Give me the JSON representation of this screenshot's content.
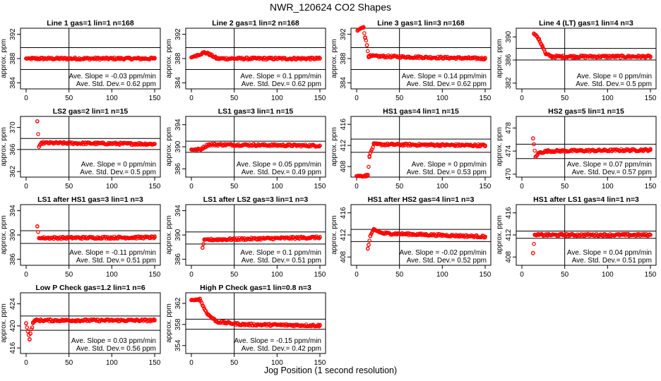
{
  "figure": {
    "title": "NWR_120624   CO2 Shapes",
    "xlabel": "Jog Position (1 second resolution)"
  },
  "colors": {
    "points": "#ff0000",
    "axes": "#000000"
  },
  "chart_data": [
    {
      "type": "scatter",
      "title": "Line 1 gas=1 lin=1 n=168",
      "ylabel": "approx. ppm",
      "xlim": [
        0,
        150
      ],
      "ylim": [
        383,
        393
      ],
      "yticks": [
        384,
        388,
        392
      ],
      "xticks": [
        0,
        50,
        100,
        150
      ],
      "hlines": [
        389.8,
        386.2
      ],
      "vline": 50,
      "slope": "Ave. Slope = -0.03  ppm/min",
      "stddev": "Ave. Std. Dev.= 0.62  ppm",
      "series": [
        {
          "x": [
            0,
            150
          ],
          "y": [
            388,
            388
          ]
        }
      ]
    },
    {
      "type": "scatter",
      "title": "Line 2 gas=1 lin=2 n=168",
      "ylabel": "approx. ppm",
      "xlim": [
        0,
        150
      ],
      "ylim": [
        383,
        393
      ],
      "yticks": [
        384,
        388,
        392
      ],
      "xticks": [
        0,
        50,
        100,
        150
      ],
      "hlines": [
        389.8,
        386.2
      ],
      "vline": 50,
      "slope": "Ave. Slope = 0.1  ppm/min",
      "stddev": "Ave. Std. Dev.= 0.62  ppm",
      "series": [
        {
          "x": [
            0,
            15,
            20,
            30,
            150
          ],
          "y": [
            388.2,
            389,
            388.8,
            388,
            388
          ]
        }
      ]
    },
    {
      "type": "scatter",
      "title": "Line 3 gas=1 lin=3 n=168",
      "ylabel": "approx. ppm",
      "xlim": [
        0,
        150
      ],
      "ylim": [
        383,
        393
      ],
      "yticks": [
        384,
        388,
        392
      ],
      "xticks": [
        0,
        50,
        100,
        150
      ],
      "hlines": [
        389.8,
        386.2
      ],
      "vline": 50,
      "slope": "Ave. Slope = 0.14  ppm/min",
      "stddev": "Ave. Std. Dev.= 0.62  ppm",
      "series": [
        {
          "x": [
            1,
            4,
            8,
            10,
            12,
            14,
            150
          ],
          "y": [
            392.6,
            392.9,
            393.2,
            391.5,
            390.2,
            388.4,
            388
          ]
        }
      ]
    },
    {
      "type": "scatter",
      "title": "Line 4 (LT) gas=1 lin=4 n=3",
      "ylabel": "approx. ppm",
      "xlim": [
        0,
        150
      ],
      "ylim": [
        381,
        391.5
      ],
      "yticks": [
        382,
        386,
        390
      ],
      "xticks": [
        0,
        50,
        100,
        150
      ],
      "hlines": [
        388,
        386
      ],
      "vline": 50,
      "slope": "Ave. Slope = 0  ppm/min",
      "stddev": "Ave. Std. Dev.= 0.5  ppm",
      "series": [
        {
          "x": [
            14,
            17,
            20,
            24,
            28,
            35,
            150
          ],
          "y": [
            390.6,
            390.2,
            389.5,
            388.4,
            387,
            386.6,
            386.6
          ]
        }
      ]
    },
    {
      "type": "scatter",
      "title": "LS2 gas=2 lin=1 n=15",
      "ylabel": "approx. ppm",
      "xlim": [
        0,
        150
      ],
      "ylim": [
        361,
        372
      ],
      "yticks": [
        362,
        366,
        370
      ],
      "xticks": [
        0,
        50,
        100,
        150
      ],
      "hlines": [
        368,
        366
      ],
      "vline": 50,
      "slope": "Ave. Slope = 0  ppm/min",
      "stddev": "Ave. Std. Dev.= 0.5  ppm",
      "series": [
        {
          "x": [
            13,
            15,
            18,
            150
          ],
          "y": [
            371.1,
            366.5,
            367.2,
            367
          ]
        }
      ]
    },
    {
      "type": "scatter",
      "title": "LS1 gas=3 lin=1 n=15",
      "ylabel": "approx. ppm",
      "xlim": [
        0,
        150
      ],
      "ylim": [
        384.5,
        395.5
      ],
      "yticks": [
        386,
        390,
        394
      ],
      "xticks": [
        0,
        50,
        100,
        150
      ],
      "hlines": [
        391,
        389
      ],
      "vline": 50,
      "slope": "Ave. Slope = 0.05  ppm/min",
      "stddev": "Ave. Std. Dev.= 0.49  ppm",
      "series": [
        {
          "x": [
            0,
            10,
            20,
            150
          ],
          "y": [
            389.5,
            389.5,
            390.4,
            390.2
          ]
        }
      ]
    },
    {
      "type": "scatter",
      "title": "HS1 gas=4 lin=1 n=15",
      "ylabel": "approx. ppm",
      "xlim": [
        0,
        150
      ],
      "ylim": [
        406,
        417.5
      ],
      "yticks": [
        408,
        412,
        416
      ],
      "xticks": [
        0,
        50,
        100,
        150
      ],
      "hlines": [
        413.2,
        410.7
      ],
      "vline": 50,
      "slope": "Ave. Slope = 0  ppm/min",
      "stddev": "Ave. Std. Dev.= 0.53  ppm",
      "series": [
        {
          "x": [
            0,
            13,
            15,
            20,
            150
          ],
          "y": [
            406.2,
            406.3,
            410,
            412.2,
            412
          ]
        }
      ]
    },
    {
      "type": "scatter",
      "title": "HS2 gas=5 lin=1 n=15",
      "ylabel": "approx. ppm",
      "xlim": [
        0,
        150
      ],
      "ylim": [
        469.5,
        480
      ],
      "yticks": [
        470,
        474,
        478
      ],
      "xticks": [
        0,
        50,
        100,
        150
      ],
      "hlines": [
        475.2,
        472.7
      ],
      "vline": 50,
      "slope": "Ave. Slope = 0.07  ppm/min",
      "stddev": "Ave. Std. Dev.= 0.57  ppm",
      "series": [
        {
          "x": [
            13,
            16,
            20,
            30,
            150
          ],
          "y": [
            476.2,
            473,
            473.7,
            474,
            474.2
          ]
        }
      ]
    },
    {
      "type": "scatter",
      "title": "LS1 after HS1 gas=3 lin=1 n=3",
      "ylabel": "approx. ppm",
      "xlim": [
        0,
        150
      ],
      "ylim": [
        385,
        395
      ],
      "yticks": [
        386,
        390,
        394
      ],
      "xticks": [
        0,
        50,
        100,
        150
      ],
      "hlines": [
        390.7,
        388.6
      ],
      "vline": 50,
      "slope": "Ave. Slope = -0.11  ppm/min",
      "stddev": "Ave. Std. Dev.= 0.51  ppm",
      "series": [
        {
          "x": [
            13,
            15,
            150
          ],
          "y": [
            391.4,
            389.5,
            389.6
          ]
        }
      ]
    },
    {
      "type": "scatter",
      "title": "LS1 after LS2 gas=3 lin=1 n=3",
      "ylabel": "approx. ppm",
      "xlim": [
        0,
        150
      ],
      "ylim": [
        385,
        395
      ],
      "yticks": [
        386,
        390,
        394
      ],
      "xticks": [
        0,
        50,
        100,
        150
      ],
      "hlines": [
        390.5,
        388.5
      ],
      "vline": 50,
      "slope": "Ave. Slope = 0.1  ppm/min",
      "stddev": "Ave. Std. Dev.= 0.51  ppm",
      "series": [
        {
          "x": [
            13,
            15,
            150
          ],
          "y": [
            387.9,
            389.2,
            389.6
          ]
        }
      ]
    },
    {
      "type": "scatter",
      "title": "HS1 after HS2 gas=4 lin=1 n=3",
      "ylabel": "approx. ppm",
      "xlim": [
        0,
        150
      ],
      "ylim": [
        406.5,
        417.5
      ],
      "yticks": [
        408,
        412,
        416
      ],
      "xticks": [
        0,
        50,
        100,
        150
      ],
      "hlines": [
        413,
        410.8
      ],
      "vline": 50,
      "slope": "Ave. Slope = -0.02  ppm/min",
      "stddev": "Ave. Std. Dev.= 0.52  ppm",
      "series": [
        {
          "x": [
            13,
            14,
            16,
            20,
            30,
            150
          ],
          "y": [
            409.5,
            410.2,
            411.8,
            413,
            412.3,
            411.7
          ]
        }
      ]
    },
    {
      "type": "scatter",
      "title": "HS1 after LS1 gas=4 lin=1 n=3",
      "ylabel": "approx. ppm",
      "xlim": [
        0,
        150
      ],
      "ylim": [
        406.5,
        417.5
      ],
      "yticks": [
        408,
        412,
        416
      ],
      "xticks": [
        0,
        50,
        100,
        150
      ],
      "hlines": [
        412.7,
        411.4
      ],
      "vline": 50,
      "slope": "Ave. Slope = 0.04  ppm/min",
      "stddev": "Ave. Std. Dev.= 0.51  ppm",
      "series": [
        {
          "x": [
            13,
            15,
            30,
            150
          ],
          "y": [
            408.7,
            412,
            412,
            412
          ]
        }
      ]
    },
    {
      "type": "scatter",
      "title": "Low P Check gas=1.2 lin=1 n=6",
      "ylabel": "approx. ppm",
      "xlim": [
        0,
        150
      ],
      "ylim": [
        415,
        426
      ],
      "yticks": [
        416,
        420,
        424
      ],
      "xticks": [
        0,
        50,
        100,
        150
      ],
      "hlines": [
        421.8,
        419.2
      ],
      "vline": 50,
      "slope": "Ave. Slope = 0.03  ppm/min",
      "stddev": "Ave. Std. Dev.= 0.56  ppm",
      "series": [
        {
          "x": [
            0,
            4,
            5,
            8,
            10,
            150
          ],
          "y": [
            420.5,
            417.6,
            418.6,
            420.5,
            421,
            421
          ]
        }
      ]
    },
    {
      "type": "scatter",
      "title": "High P Check gas=1 lin=0.8 n=3",
      "ylabel": "approx. ppm",
      "xlim": [
        0,
        150
      ],
      "ylim": [
        352.5,
        364
      ],
      "yticks": [
        354,
        358,
        362
      ],
      "xticks": [
        0,
        50,
        100,
        150
      ],
      "hlines": [
        359,
        357.1
      ],
      "vline": 50,
      "slope": "Ave. Slope = -0.15  ppm/min",
      "stddev": "Ave. Std. Dev.= 0.42  ppm",
      "series": [
        {
          "x": [
            0,
            10,
            15,
            20,
            30,
            60,
            150
          ],
          "y": [
            362.6,
            362.8,
            361,
            359.8,
            358.5,
            358,
            357.8
          ]
        }
      ]
    }
  ]
}
